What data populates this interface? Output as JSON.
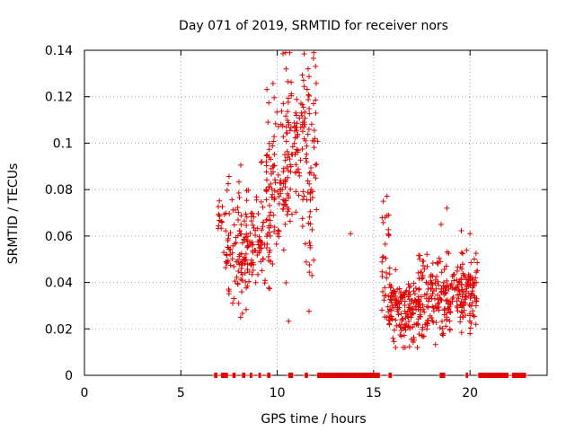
{
  "chart_data": {
    "type": "scatter",
    "title": "Day 071 of 2019, SRMTID for receiver nors",
    "xlabel": "GPS time / hours",
    "ylabel": "SRMTID / TECUs",
    "xlim": [
      0,
      24
    ],
    "ylim": [
      0,
      0.14
    ],
    "x_ticks": [
      0,
      5,
      10,
      15,
      20
    ],
    "x_tick_labels": [
      "0",
      "5",
      "10",
      "15",
      "20"
    ],
    "y_ticks": [
      0,
      0.02,
      0.04,
      0.06,
      0.08,
      0.1,
      0.12,
      0.14
    ],
    "y_tick_labels": [
      "0",
      "0.02",
      "0.04",
      "0.06",
      "0.08",
      "0.1",
      "0.12",
      "0.14"
    ],
    "grid": true,
    "marker": "+",
    "color": "#e00000",
    "clusters": [
      {
        "x_range": [
          6.9,
          7.3
        ],
        "y_mean": 0.066,
        "y_spread": 0.006,
        "count": 14
      },
      {
        "x_range": [
          7.3,
          8.4
        ],
        "y_mean": 0.054,
        "y_spread": 0.013,
        "count": 95
      },
      {
        "x_range": [
          8.4,
          9.7
        ],
        "y_mean": 0.058,
        "y_spread": 0.011,
        "count": 100
      },
      {
        "x_range": [
          9.4,
          10.6
        ],
        "y_mean": 0.083,
        "y_spread": 0.017,
        "count": 95
      },
      {
        "x_range": [
          10.4,
          11.4
        ],
        "y_mean": 0.098,
        "y_spread": 0.018,
        "count": 80
      },
      {
        "x_range": [
          11.3,
          12.1
        ],
        "y_mean": 0.092,
        "y_spread": 0.025,
        "count": 70
      },
      {
        "x_range": [
          15.4,
          15.8
        ],
        "y_mean": 0.047,
        "y_spread": 0.013,
        "count": 30
      },
      {
        "x_range": [
          15.8,
          17.4
        ],
        "y_mean": 0.028,
        "y_spread": 0.008,
        "count": 150
      },
      {
        "x_range": [
          17.3,
          18.8
        ],
        "y_mean": 0.034,
        "y_spread": 0.009,
        "count": 130
      },
      {
        "x_range": [
          18.7,
          20.4
        ],
        "y_mean": 0.034,
        "y_spread": 0.008,
        "count": 150
      }
    ],
    "outliers": [
      {
        "x": 10.3,
        "y": 0.1385
      },
      {
        "x": 11.9,
        "y": 0.139
      },
      {
        "x": 11.6,
        "y": 0.132
      },
      {
        "x": 12.0,
        "y": 0.113
      },
      {
        "x": 11.8,
        "y": 0.043
      },
      {
        "x": 13.8,
        "y": 0.061
      },
      {
        "x": 15.5,
        "y": 0.075
      },
      {
        "x": 15.6,
        "y": 0.068
      },
      {
        "x": 18.8,
        "y": 0.072
      },
      {
        "x": 18.5,
        "y": 0.065
      },
      {
        "x": 20.0,
        "y": 0.061
      },
      {
        "x": 20.0,
        "y": 0.018
      },
      {
        "x": 8.1,
        "y": 0.025
      },
      {
        "x": 8.0,
        "y": 0.031
      },
      {
        "x": 9.2,
        "y": 0.092
      }
    ],
    "zero_segments": [
      [
        6.75,
        6.9
      ],
      [
        7.1,
        7.45
      ],
      [
        7.7,
        7.85
      ],
      [
        8.2,
        8.35
      ],
      [
        8.6,
        8.7
      ],
      [
        9.05,
        9.15
      ],
      [
        9.5,
        9.65
      ],
      [
        10.6,
        10.8
      ],
      [
        11.45,
        11.6
      ],
      [
        12.1,
        15.3
      ],
      [
        15.8,
        15.95
      ],
      [
        18.45,
        18.7
      ],
      [
        19.8,
        19.9
      ],
      [
        20.45,
        22.0
      ],
      [
        22.2,
        22.9
      ]
    ]
  }
}
